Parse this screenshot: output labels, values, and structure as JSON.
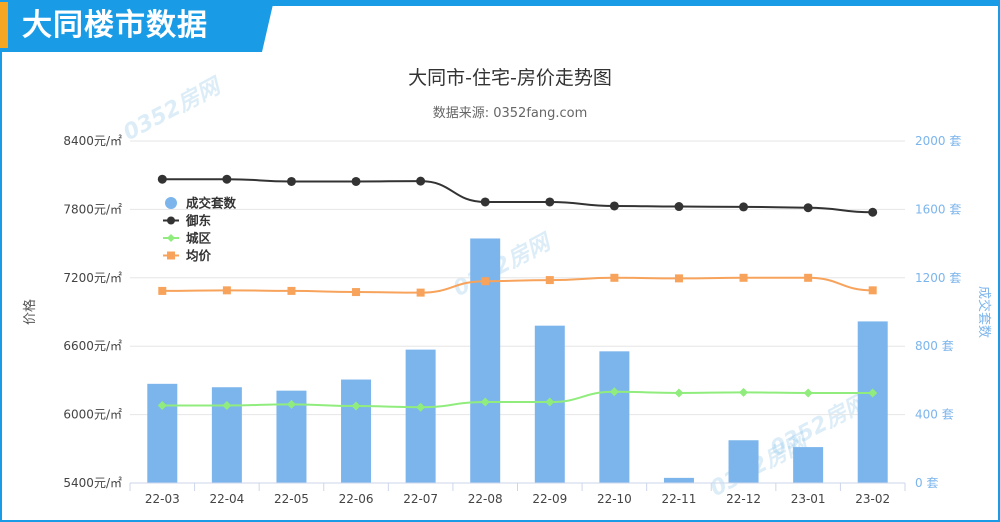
{
  "header": {
    "title": "大同楼市数据"
  },
  "watermark": {
    "text": "0352房网"
  },
  "colors": {
    "accent": "#1a9be6",
    "orange": "#f5a623",
    "bar": "#7cb5ec",
    "yudong": "#333333",
    "chengqu": "#90ed7d",
    "avg": "#f7a35c",
    "right_axis": "#7cb5ec"
  },
  "chart_data": {
    "type": "bar",
    "title": "大同市-住宅-房价走势图",
    "subtitle": "数据来源: 0352fang.com",
    "categories": [
      "22-03",
      "22-04",
      "22-05",
      "22-06",
      "22-07",
      "22-08",
      "22-09",
      "22-10",
      "22-11",
      "22-12",
      "23-01",
      "23-02"
    ],
    "ylabel_left": "价格",
    "ylabel_right": "成交套数",
    "ylim_left": [
      5400,
      8400
    ],
    "ylim_right": [
      0,
      2000
    ],
    "left_ticks": [
      "5400元/㎡",
      "6000元/㎡",
      "6600元/㎡",
      "7200元/㎡",
      "7800元/㎡",
      "8400元/㎡"
    ],
    "right_ticks": [
      "0 套",
      "400 套",
      "800 套",
      "1200 套",
      "1600 套",
      "2000 套"
    ],
    "grid": true,
    "legend_position": "top-left",
    "series": [
      {
        "name": "成交套数",
        "type": "bar",
        "axis": "right",
        "values": [
          580,
          560,
          540,
          605,
          780,
          1430,
          920,
          770,
          30,
          250,
          210,
          945
        ]
      },
      {
        "name": "御东",
        "type": "line",
        "axis": "left",
        "marker": "circle",
        "values": [
          8065,
          8065,
          8045,
          8045,
          8048,
          7865,
          7865,
          7830,
          7825,
          7822,
          7815,
          7775
        ]
      },
      {
        "name": "城区",
        "type": "line",
        "axis": "left",
        "marker": "diamond",
        "values": [
          6080,
          6080,
          6090,
          6075,
          6065,
          6110,
          6110,
          6200,
          6190,
          6195,
          6190,
          6190
        ]
      },
      {
        "name": "均价",
        "type": "line",
        "axis": "left",
        "marker": "square",
        "values": [
          7085,
          7090,
          7085,
          7075,
          7070,
          7170,
          7180,
          7200,
          7195,
          7200,
          7200,
          7090
        ]
      }
    ]
  }
}
